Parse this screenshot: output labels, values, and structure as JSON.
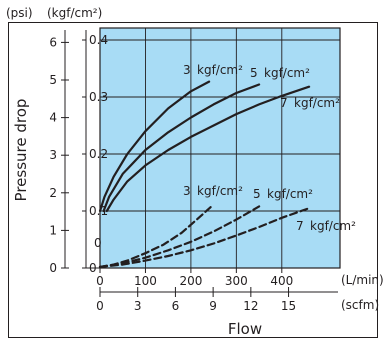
{
  "chart_data": {
    "type": "line",
    "units": {
      "psi": "(psi)",
      "kgf": "(kgf/cm²)",
      "lmin": "(L/min)",
      "scfm": "(scfm)"
    },
    "ylabel": "Pressure drop",
    "xlabel": "Flow",
    "y_primary_ticks": [
      "0.4",
      "0.3",
      "0.2",
      "0.1",
      "0"
    ],
    "y_primary_values": [
      0.4,
      0.3,
      0.2,
      0.1,
      0
    ],
    "y_psi_ticks": [
      "6",
      "5",
      "4",
      "3",
      "2",
      "1",
      "0"
    ],
    "y_psi_values": [
      6,
      5,
      4,
      3,
      2,
      1,
      0
    ],
    "x_lmin_ticks": [
      "0",
      "100",
      "200",
      "300",
      "400"
    ],
    "x_lmin_values": [
      0,
      100,
      200,
      300,
      400
    ],
    "x_scfm_ticks": [
      "0",
      "3",
      "6",
      "9",
      "12",
      "15"
    ],
    "x_scfm_values": [
      0,
      3,
      6,
      9,
      12,
      15
    ],
    "xlim": [
      0,
      480
    ],
    "ylim": [
      0,
      0.45
    ],
    "grid": true,
    "background_color": "#a8dcf5",
    "line_color": "#231f20",
    "zero_label": "0",
    "series": [
      {
        "name": "3 kgf/cm²",
        "name_parts": [
          "3",
          "kgf/cm²"
        ],
        "style": "solid",
        "x": [
          0,
          10,
          30,
          60,
          100,
          150,
          200,
          240
        ],
        "y": [
          0.1,
          0.125,
          0.16,
          0.2,
          0.24,
          0.28,
          0.31,
          0.327
        ]
      },
      {
        "name": "5 kgf/cm²",
        "name_parts": [
          "5",
          "kgf/cm²"
        ],
        "style": "solid",
        "x": [
          8,
          20,
          50,
          100,
          150,
          200,
          250,
          300,
          350
        ],
        "y": [
          0.1,
          0.125,
          0.165,
          0.207,
          0.238,
          0.264,
          0.287,
          0.307,
          0.322
        ]
      },
      {
        "name": "7 kgf/cm²",
        "name_parts": [
          "7",
          "kgf/cm²"
        ],
        "style": "solid",
        "x": [
          15,
          30,
          60,
          100,
          150,
          200,
          250,
          300,
          350,
          400,
          460
        ],
        "y": [
          0.1,
          0.12,
          0.152,
          0.18,
          0.207,
          0.23,
          0.25,
          0.27,
          0.287,
          0.302,
          0.318
        ]
      },
      {
        "name": "3 kgf/cm²",
        "name_parts": [
          "3",
          "kgf/cm²"
        ],
        "style": "dashed",
        "x": [
          0,
          30,
          60,
          100,
          140,
          180,
          220,
          245
        ],
        "y": [
          0.002,
          0.006,
          0.013,
          0.026,
          0.041,
          0.062,
          0.09,
          0.108
        ]
      },
      {
        "name": "5 kgf/cm²",
        "name_parts": [
          "5",
          "kgf/cm²"
        ],
        "style": "dashed",
        "x": [
          0,
          50,
          100,
          150,
          200,
          250,
          300,
          350
        ],
        "y": [
          0.002,
          0.008,
          0.018,
          0.031,
          0.046,
          0.064,
          0.085,
          0.108
        ]
      },
      {
        "name": "7 kgf/cm²",
        "name_parts": [
          "7",
          "kgf/cm²"
        ],
        "style": "dashed",
        "x": [
          0,
          50,
          100,
          150,
          200,
          250,
          300,
          350,
          400,
          460
        ],
        "y": [
          0.002,
          0.006,
          0.013,
          0.021,
          0.031,
          0.043,
          0.057,
          0.072,
          0.088,
          0.105
        ]
      }
    ]
  }
}
